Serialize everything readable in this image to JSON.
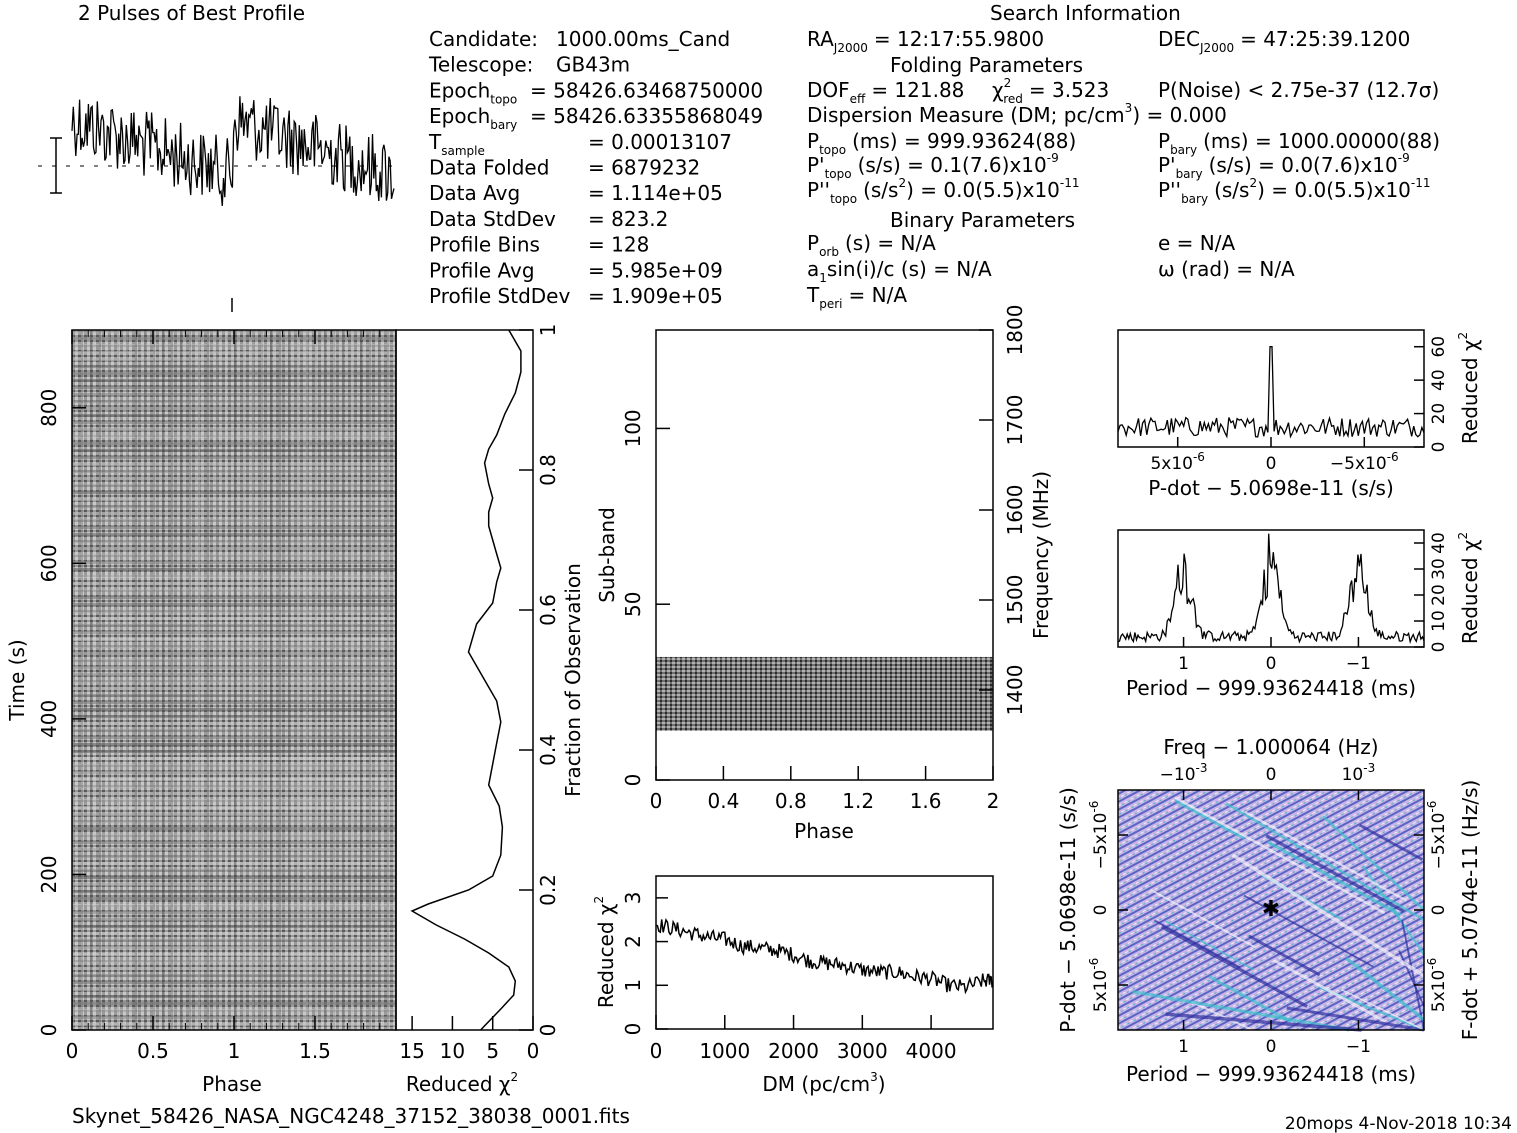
{
  "header": {
    "profile_title": "2 Pulses of Best Profile",
    "search_title": "Search Information",
    "folding_title": "Folding Parameters",
    "binary_title": "Binary Parameters"
  },
  "info_left": [
    {
      "label": "Candidate:",
      "sub": "",
      "value": "1000.00ms_Cand"
    },
    {
      "label": "Telescope:",
      "sub": "",
      "value": "GB43m"
    },
    {
      "label": "Epoch",
      "sub": "topo",
      "value": "= 58426.63468750000"
    },
    {
      "label": "Epoch",
      "sub": "bary",
      "value": "= 58426.63355868049"
    },
    {
      "label": "T",
      "sub": "sample",
      "value": "=   0.00013107"
    },
    {
      "label": "Data Folded",
      "sub": "",
      "value": "=   6879232"
    },
    {
      "label": "Data Avg",
      "sub": "",
      "value": "=   1.114e+05"
    },
    {
      "label": "Data StdDev",
      "sub": "",
      "value": "=   823.2"
    },
    {
      "label": "Profile Bins",
      "sub": "",
      "value": "=   128"
    },
    {
      "label": "Profile Avg",
      "sub": "",
      "value": "=   5.985e+09"
    },
    {
      "label": "Profile StdDev",
      "sub": "",
      "value": "=   1.909e+05"
    }
  ],
  "search": {
    "ra_label": "RA",
    "ra_sub": "J2000",
    "ra_value": "= 12:17:55.9800",
    "dec_label": "DEC",
    "dec_sub": "J2000",
    "dec_value": "= 47:25:39.1200",
    "dof_label": "DOF",
    "dof_sub": "eff",
    "dof_value": "= 121.88",
    "chi_label": "χ",
    "chi_sup": "2",
    "chi_sub": "red",
    "chi_value": "= 3.523",
    "pnoise": "P(Noise) < 2.75e-37   (12.7σ)",
    "dm_text": "Dispersion Measure (DM; pc/cm",
    "dm_sup": "3",
    "dm_value": ") = 0.000",
    "ptopo_label": "P",
    "ptopo_sub": "topo",
    "ptopo_value": "(ms) =   999.93624(88)",
    "pbary_label": "P",
    "pbary_sub": "bary",
    "pbary_value": "(ms) =   1000.00000(88)",
    "pdtopo_label": "P'",
    "pdtopo_sub": "topo",
    "pdtopo_value": "(s/s) =   0.1(7.6)x10",
    "pdtopo_exp": "-9",
    "pdbary_label": "P'",
    "pdbary_sub": "bary",
    "pdbary_value": "(s/s) = 0.0(7.6)x10",
    "pdbary_exp": "-9",
    "pddtopo_label": "P''",
    "pddtopo_sub": "topo",
    "pddtopo_value": "(s/s",
    "pddtopo_sup": "2",
    "pddtopo_rest": ") = 0.0(5.5)x10",
    "pddtopo_exp": "-11",
    "pddbary_label": "P''",
    "pddbary_sub": "bary",
    "pddbary_value": "(s/s",
    "pddbary_sup": "2",
    "pddbary_rest": ") = 0.0(5.5)x10",
    "pddbary_exp": "-11",
    "porb_label": "P",
    "porb_sub": "orb",
    "porb_value": "(s) = N/A",
    "e_text": "e = N/A",
    "asini_label": "a",
    "asini_sub": "1",
    "asini_value": "sin(i)/c (s) = N/A",
    "omega_text": "ω (rad) = N/A",
    "tperi_label": "T",
    "tperi_sub": "peri",
    "tperi_value": "= N/A"
  },
  "footer": {
    "filename": "Skynet_58426_NASA_NGC4248_37152_38038_0001.fits",
    "stamp": "20mops   4-Nov-2018 10:34"
  },
  "chart_data": [
    {
      "id": "time-phase",
      "type": "heatmap",
      "xlabel": "Phase",
      "ylabel": "Time (s)",
      "xlim": [
        0,
        2
      ],
      "ylim": [
        0,
        900
      ],
      "xticks": [
        "0",
        "0.5",
        "1",
        "1.5"
      ],
      "yticks": [
        "0",
        "200",
        "400",
        "600",
        "800"
      ],
      "colormap": "grayscale"
    },
    {
      "id": "chi-vs-time",
      "type": "line",
      "xlabel": "Reduced χ",
      "xlabel_sup": "2",
      "ylabel": "Fraction of Observation",
      "xlim": [
        17,
        0
      ],
      "ylim": [
        0,
        1
      ],
      "xticks": [
        "15",
        "10",
        "5",
        "0"
      ],
      "yticks": [
        "0",
        "0.2",
        "0.4",
        "0.6",
        "0.8",
        "1"
      ],
      "x": [
        6.5,
        4,
        2.4,
        2.2,
        3,
        5.5,
        8.5,
        12,
        15,
        13,
        8,
        5,
        4,
        3.8,
        4.2,
        5.5,
        5,
        4.5,
        4,
        4.5,
        6,
        8,
        7,
        5,
        4.5,
        4,
        4.5,
        5,
        5.5,
        5.5,
        5,
        5.5,
        6,
        5.5,
        4.5,
        3.5,
        2.2,
        1.5,
        1.5,
        3
      ],
      "y": [
        0,
        0.03,
        0.05,
        0.07,
        0.09,
        0.11,
        0.13,
        0.15,
        0.17,
        0.18,
        0.2,
        0.22,
        0.25,
        0.29,
        0.32,
        0.35,
        0.38,
        0.41,
        0.44,
        0.47,
        0.5,
        0.54,
        0.58,
        0.61,
        0.64,
        0.66,
        0.68,
        0.7,
        0.72,
        0.74,
        0.76,
        0.78,
        0.81,
        0.83,
        0.85,
        0.88,
        0.91,
        0.94,
        0.97,
        1.0
      ]
    },
    {
      "id": "subband-phase",
      "type": "heatmap",
      "xlabel": "Phase",
      "ylabel": "Sub-band",
      "ylabel_right": "Frequency (MHz)",
      "xlim": [
        0,
        2
      ],
      "ylim": [
        0,
        128
      ],
      "ylim_right": [
        1300,
        1800
      ],
      "xticks": [
        "0",
        "0.4",
        "0.8",
        "1.2",
        "1.6",
        "2"
      ],
      "yticks": [
        "0",
        "50",
        "100"
      ],
      "yticks_right": [
        "1400",
        "1500",
        "1600",
        "1700",
        "1800"
      ],
      "filled_band": [
        14,
        35
      ],
      "colormap": "grayscale"
    },
    {
      "id": "chi-vs-dm",
      "type": "line",
      "xlabel": "DM (pc/cm",
      "xlabel_sup": "3",
      "xlabel_tail": ")",
      "ylabel": "Reduced χ",
      "ylabel_sup": "2",
      "xlim": [
        0,
        4900
      ],
      "ylim": [
        0,
        3.5
      ],
      "xticks": [
        "0",
        "1000",
        "2000",
        "3000",
        "4000"
      ],
      "yticks": [
        "0",
        "1",
        "2",
        "3"
      ],
      "x": [
        0,
        250,
        500,
        750,
        1000,
        1250,
        1500,
        1750,
        2000,
        2250,
        2500,
        2750,
        3000,
        3250,
        3500,
        3750,
        4000,
        4250,
        4500,
        4750,
        4900
      ],
      "y": [
        2.4,
        2.3,
        2.2,
        2.1,
        2.05,
        1.9,
        1.85,
        1.8,
        1.7,
        1.55,
        1.5,
        1.45,
        1.35,
        1.3,
        1.3,
        1.2,
        1.15,
        1.0,
        0.95,
        1.1,
        1.1
      ]
    },
    {
      "id": "chi-vs-pdot",
      "type": "line",
      "xlabel": "P-dot − 5.0698e-11 (s/s)",
      "ylabel": "Reduced χ",
      "ylabel_sup": "2",
      "xlim": [
        8.2e-06,
        -8.2e-06
      ],
      "ylim": [
        0,
        70
      ],
      "xticks": [
        "5x10",
        "0",
        "−5x10"
      ],
      "xtick_exp": "-6",
      "yticks": [
        "0",
        "20",
        "40",
        "60"
      ],
      "peak": {
        "x": 0,
        "y": 60
      },
      "baseline": 8
    },
    {
      "id": "chi-vs-period",
      "type": "line",
      "xlabel": "Period − 999.93624418 (ms)",
      "ylabel": "Reduced χ",
      "ylabel_sup": "2",
      "xlim": [
        1.75,
        -1.75
      ],
      "ylim": [
        0,
        45
      ],
      "xticks": [
        "1",
        "0",
        "−1"
      ],
      "yticks": [
        "0",
        "10",
        "20",
        "30",
        "40"
      ],
      "peaks": [
        {
          "x": 1.0,
          "y": 38
        },
        {
          "x": 0.0,
          "y": 42
        },
        {
          "x": -1.0,
          "y": 36
        }
      ]
    },
    {
      "id": "pdot-period",
      "type": "heatmap",
      "title": "Freq − 1.000064 (Hz)",
      "xlabel": "Period − 999.93624418 (ms)",
      "ylabel": "P-dot − 5.0698e-11 (s/s)",
      "ylabel_right": "F-dot + 5.0704e-11 (Hz/s)",
      "xlim": [
        1.75,
        -1.75
      ],
      "xticks": [
        "1",
        "0",
        "−1"
      ],
      "xticks_top": [
        "−10",
        "0",
        "10"
      ],
      "xticks_top_exp": "-3",
      "yticks": [
        "5x10",
        "0",
        "−5x10"
      ],
      "yticks_exp": "-6",
      "yticks_right": [
        "−5x10",
        "0",
        "5x10"
      ],
      "yticks_right_exp": "-6",
      "colormap": "rainbow",
      "best": {
        "period": 0,
        "pdot": 0
      }
    }
  ]
}
